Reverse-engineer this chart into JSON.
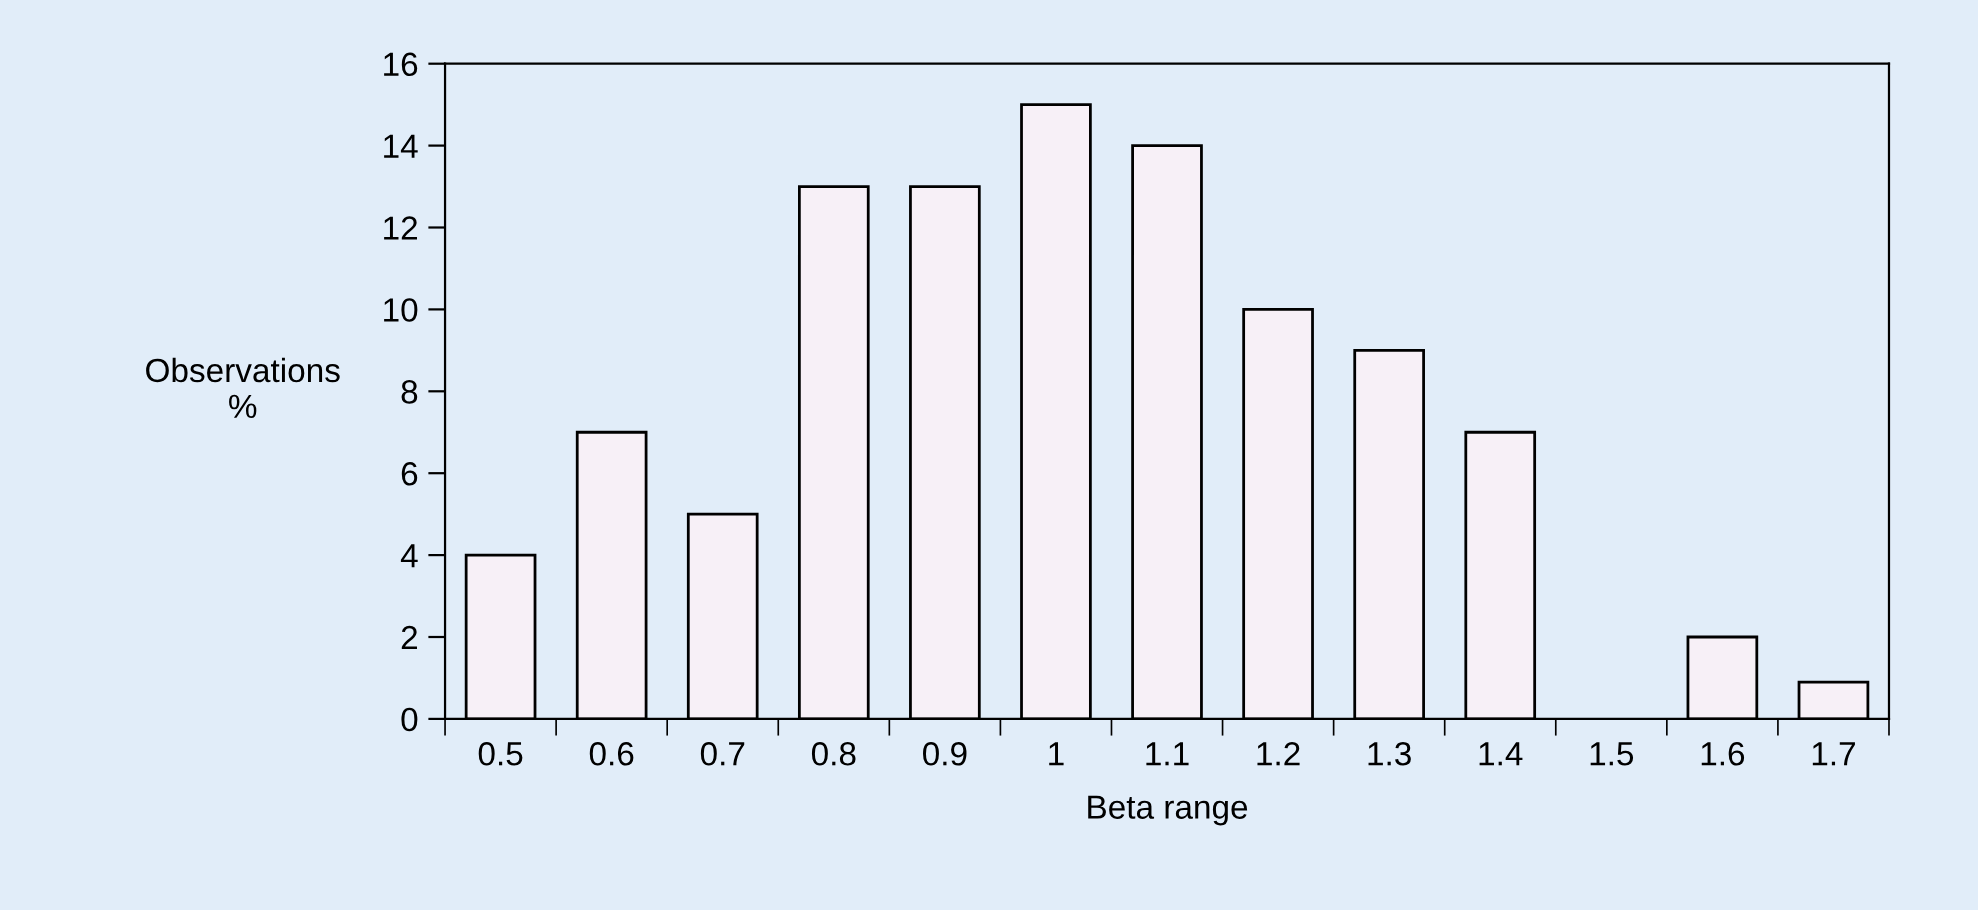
{
  "chart_data": {
    "type": "bar",
    "xlabel": "Beta range",
    "ylabel": "Observations\n%",
    "categories": [
      "0.5",
      "0.6",
      "0.7",
      "0.8",
      "0.9",
      "1",
      "1.1",
      "1.2",
      "1.3",
      "1.4",
      "1.5",
      "1.6",
      "1.7"
    ],
    "values": [
      4,
      7,
      5,
      13,
      13,
      15,
      14,
      10,
      9,
      7,
      0,
      2,
      0.9
    ],
    "color": "#f7f0f7",
    "ylim": [
      0,
      16
    ],
    "yticks": [
      0,
      2,
      4,
      6,
      8,
      10,
      12,
      14,
      16
    ],
    "grid": false,
    "legend": false
  }
}
